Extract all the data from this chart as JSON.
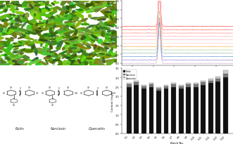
{
  "chromatogram": {
    "n_traces": 12,
    "colors_top": [
      "#ff9999",
      "#ff7777",
      "#ff5555",
      "#ff3333",
      "#ff1111",
      "#dd0000"
    ],
    "colors_bottom": [
      "#ffcc88",
      "#aaddaa",
      "#88ccaa",
      "#77bbcc",
      "#99aadd",
      "#bbaacc"
    ],
    "x_range": [
      0,
      60
    ],
    "peak_positions": [
      5,
      8,
      11,
      14,
      18,
      23,
      30,
      38,
      48
    ],
    "peak_heights": [
      0.04,
      0.05,
      0.06,
      0.04,
      0.08,
      0.9,
      0.05,
      0.04,
      0.03
    ]
  },
  "bar_chart": {
    "batch_labels": [
      "S-1",
      "S-2",
      "S-3",
      "S-4",
      "S-5",
      "S-6",
      "S-7",
      "S-8",
      "S-9",
      "S-10",
      "S-11",
      "S-12",
      "S-13",
      "S-14"
    ],
    "quercetin": [
      0.08,
      0.09,
      0.08,
      0.08,
      0.07,
      0.08,
      0.08,
      0.07,
      0.08,
      0.08,
      0.09,
      0.1,
      0.11,
      0.18
    ],
    "narcissin": [
      0.12,
      0.13,
      0.11,
      0.12,
      0.1,
      0.11,
      0.12,
      0.11,
      0.12,
      0.12,
      0.13,
      0.14,
      0.15,
      0.2
    ],
    "rutin": [
      2.5,
      2.6,
      2.4,
      2.5,
      2.3,
      2.4,
      2.5,
      2.4,
      2.5,
      2.5,
      2.6,
      2.7,
      2.8,
      3.0
    ],
    "ylabel": "Content (mg/g)",
    "xlabel": "Batch No.",
    "color_quercetin": "#cccccc",
    "color_narcissin": "#777777",
    "color_rutin": "#111111",
    "legend_labels": [
      "Quercetin",
      "Narcissin",
      "Rutin"
    ],
    "ylim": [
      0,
      3.5
    ]
  },
  "photo": {
    "bg_color": "#4a6b1a",
    "n_buds": 600,
    "seed": 42
  },
  "structures": {
    "labels": [
      "Rutin",
      "Narcissin",
      "Quercetin"
    ]
  },
  "background_color": "#ffffff"
}
